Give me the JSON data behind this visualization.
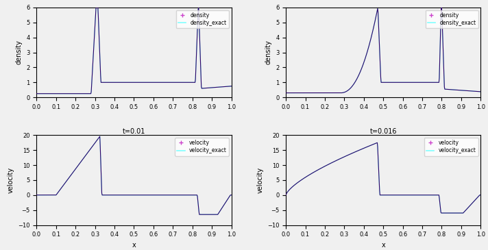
{
  "t1": 0.01,
  "t2": 0.016,
  "xlim": [
    0,
    1
  ],
  "density_ylim": [
    0,
    6
  ],
  "velocity_ylim": [
    -10,
    20
  ],
  "density_yticks": [
    0,
    1,
    2,
    3,
    4,
    5,
    6
  ],
  "velocity_yticks": [
    -10,
    -5,
    0,
    5,
    10,
    15,
    20
  ],
  "xticks": [
    0,
    0.1,
    0.2,
    0.3,
    0.4,
    0.5,
    0.6,
    0.7,
    0.8,
    0.9,
    1
  ],
  "numerical_color": "#330066",
  "exact_color": "#80FFFF",
  "marker": "+",
  "marker_color": "#CC44CC",
  "legend_density": [
    "density",
    "density_exact"
  ],
  "legend_velocity": [
    "velocity",
    "velocity_exact"
  ],
  "xlabel": "x",
  "ylabel_density": "density",
  "ylabel_velocity": "velocity",
  "title1": "t=0.01",
  "title2": "t=0.016",
  "bg_color": "#F0F0F0"
}
